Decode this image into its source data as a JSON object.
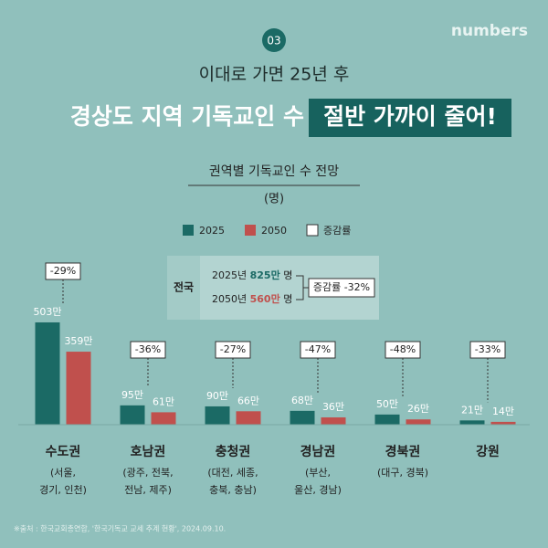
{
  "badge": "03",
  "logo": "numbers",
  "kicker": "이대로 가면 25년 후",
  "headline": "경상도 지역 기독교인 수",
  "headline_highlight": "절반 가까이 줄어!",
  "source": "※출처 : 한국교회총연합, '한국기독교 교세 추계 현황', 2024.09.10.",
  "national": {
    "label": "전국",
    "rows": [
      {
        "year": "2025년",
        "value": "825만",
        "unit": "명"
      },
      {
        "year": "2050년",
        "value": "560만",
        "unit": "명"
      }
    ],
    "change": "증감률 -32%"
  },
  "chart_data": {
    "type": "bar",
    "title": "권역별 기독교인 수 전망",
    "unit": "(명)",
    "categories": [
      "수도권",
      "호남권",
      "충청권",
      "경남권",
      "경북권",
      "강원"
    ],
    "category_details": [
      [
        "(서울,",
        "경기, 인천)"
      ],
      [
        "(광주, 전북,",
        "전남, 제주)"
      ],
      [
        "(대전, 세종,",
        "충북, 충남)"
      ],
      [
        "(부산,",
        "울산, 경남)"
      ],
      [
        "(대구, 경북)"
      ],
      []
    ],
    "series": [
      {
        "name": "2025",
        "color": "#1b6a65",
        "values": [
          503,
          95,
          90,
          68,
          50,
          21
        ],
        "value_labels": [
          "503만",
          "95만",
          "90만",
          "68만",
          "50만",
          "21만"
        ]
      },
      {
        "name": "2050",
        "color": "#c0504d",
        "values": [
          359,
          61,
          66,
          36,
          26,
          14
        ],
        "value_labels": [
          "359만",
          "61만",
          "66만",
          "36만",
          "26만",
          "14만"
        ]
      }
    ],
    "change_name": "증감률",
    "change_color": "#ffffff",
    "change_values": [
      -29,
      -36,
      -27,
      -47,
      -48,
      -33
    ],
    "change_labels": [
      "-29%",
      "-36%",
      "-27%",
      "-47%",
      "-48%",
      "-33%"
    ]
  }
}
